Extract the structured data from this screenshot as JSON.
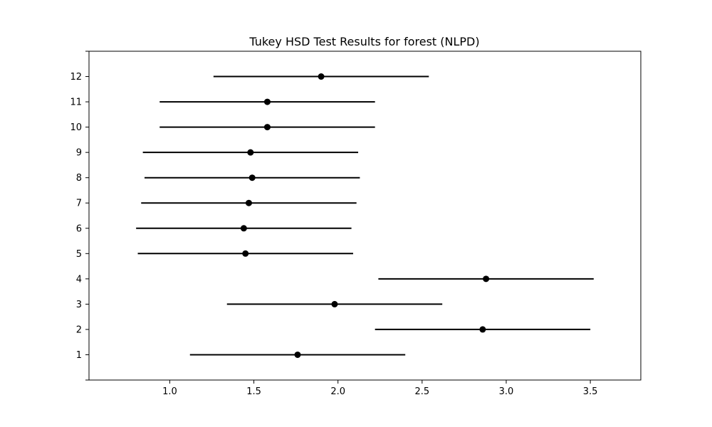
{
  "chart_data": {
    "type": "scatter",
    "title": "Tukey HSD Test Results for forest (NLPD)",
    "xlabel": "",
    "ylabel": "",
    "xlim": [
      0.52,
      3.8
    ],
    "ylim": [
      0,
      13
    ],
    "x_ticks": [
      "1.0",
      "1.5",
      "2.0",
      "2.5",
      "3.0",
      "3.5"
    ],
    "x_tick_values": [
      1.0,
      1.5,
      2.0,
      2.5,
      3.0,
      3.5
    ],
    "y_ticks": [
      "1",
      "2",
      "3",
      "4",
      "5",
      "6",
      "7",
      "8",
      "9",
      "10",
      "11",
      "12"
    ],
    "grid": false,
    "groups": [
      {
        "label": "1",
        "mean": 1.76,
        "lower": 1.12,
        "upper": 2.4
      },
      {
        "label": "2",
        "mean": 2.86,
        "lower": 2.22,
        "upper": 3.5
      },
      {
        "label": "3",
        "mean": 1.98,
        "lower": 1.34,
        "upper": 2.62
      },
      {
        "label": "4",
        "mean": 2.88,
        "lower": 2.24,
        "upper": 3.52
      },
      {
        "label": "5",
        "mean": 1.45,
        "lower": 0.81,
        "upper": 2.09
      },
      {
        "label": "6",
        "mean": 1.44,
        "lower": 0.8,
        "upper": 2.08
      },
      {
        "label": "7",
        "mean": 1.47,
        "lower": 0.83,
        "upper": 2.11
      },
      {
        "label": "8",
        "mean": 1.49,
        "lower": 0.85,
        "upper": 2.13
      },
      {
        "label": "9",
        "mean": 1.48,
        "lower": 0.84,
        "upper": 2.12
      },
      {
        "label": "10",
        "mean": 1.58,
        "lower": 0.94,
        "upper": 2.22
      },
      {
        "label": "11",
        "mean": 1.58,
        "lower": 0.94,
        "upper": 2.22
      },
      {
        "label": "12",
        "mean": 1.9,
        "lower": 1.26,
        "upper": 2.54
      }
    ],
    "marker_color": "#000000",
    "line_color": "#000000"
  }
}
